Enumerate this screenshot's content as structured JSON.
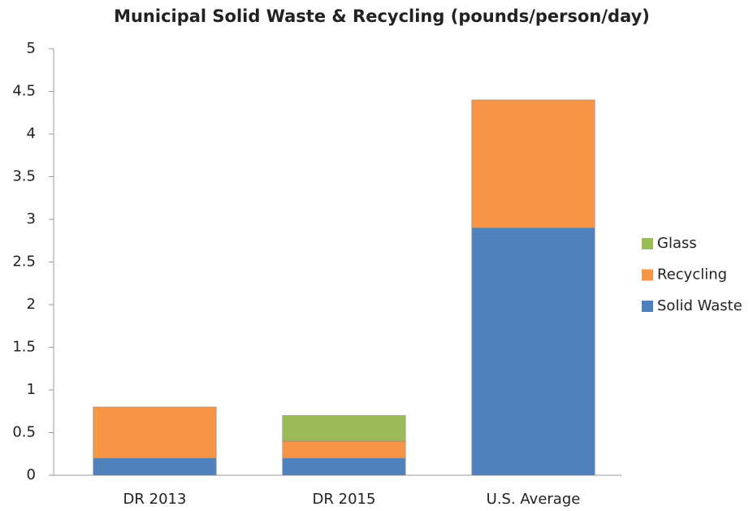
{
  "chart_data": {
    "type": "stacked_bar",
    "title": "Municipal Solid Waste & Recycling (pounds/person/day)",
    "categories": [
      "DR 2013",
      "DR 2015",
      "U.S. Average"
    ],
    "series": [
      {
        "name": "Solid Waste",
        "color": "#4f81bd",
        "values": [
          0.2,
          0.2,
          2.9
        ]
      },
      {
        "name": "Recycling",
        "color": "#f79646",
        "values": [
          0.6,
          0.2,
          1.5
        ]
      },
      {
        "name": "Glass",
        "color": "#9bbb59",
        "values": [
          0,
          0.3,
          0
        ]
      }
    ],
    "ylim": [
      0,
      5
    ],
    "yticks": [
      0,
      0.5,
      1,
      1.5,
      2,
      2.5,
      3,
      3.5,
      4,
      4.5,
      5
    ],
    "grid": false,
    "legend": "right"
  }
}
